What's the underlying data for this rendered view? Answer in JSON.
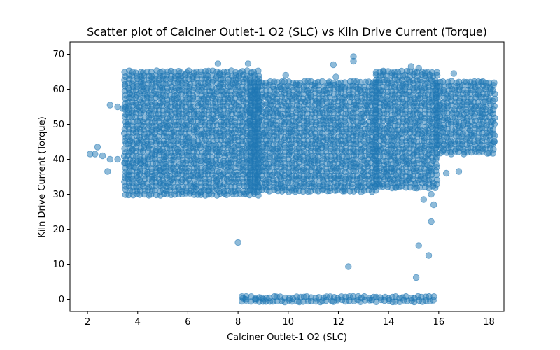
{
  "chart_data": {
    "type": "scatter",
    "title": "Scatter plot of Calciner Outlet-1 O2 (SLC) vs Kiln Drive Current (Torque)",
    "xlabel": "Calciner Outlet-1 O2 (SLC)",
    "ylabel": "Kiln Drive Current (Torque)",
    "xlim": [
      1.3,
      18.6
    ],
    "ylim": [
      -3.5,
      73.5
    ],
    "xticks": [
      2,
      4,
      6,
      8,
      10,
      12,
      14,
      16,
      18
    ],
    "yticks": [
      0,
      10,
      20,
      30,
      40,
      50,
      60,
      70
    ],
    "grid": false,
    "point_color": "#1f77b4",
    "point_alpha": 0.5,
    "clusters": [
      {
        "x": [
          3.5,
          8.8
        ],
        "y": [
          30,
          65
        ]
      },
      {
        "x": [
          8.5,
          13.5
        ],
        "y": [
          31,
          62
        ]
      },
      {
        "x": [
          13.5,
          15.9
        ],
        "y": [
          32,
          65
        ]
      },
      {
        "x": [
          15.9,
          18.2
        ],
        "y": [
          42,
          62
        ]
      },
      {
        "x": [
          8.2,
          15.8
        ],
        "y": [
          -0.5,
          0.5
        ]
      }
    ],
    "points": [
      {
        "x": 2.1,
        "y": 41.5
      },
      {
        "x": 2.3,
        "y": 41.5
      },
      {
        "x": 2.4,
        "y": 43.5
      },
      {
        "x": 2.6,
        "y": 41.0
      },
      {
        "x": 2.9,
        "y": 55.5
      },
      {
        "x": 2.9,
        "y": 40.0
      },
      {
        "x": 2.8,
        "y": 36.5
      },
      {
        "x": 3.2,
        "y": 55.0
      },
      {
        "x": 3.2,
        "y": 40.0
      },
      {
        "x": 3.4,
        "y": 54.5
      },
      {
        "x": 3.5,
        "y": 39.0
      },
      {
        "x": 3.7,
        "y": 38.0
      },
      {
        "x": 4.1,
        "y": 39.0
      },
      {
        "x": 4.9,
        "y": 37.0
      },
      {
        "x": 8.0,
        "y": 16.2
      },
      {
        "x": 8.2,
        "y": 0.3
      },
      {
        "x": 8.3,
        "y": 0.0
      },
      {
        "x": 8.7,
        "y": 0.0
      },
      {
        "x": 9.0,
        "y": 0.0
      },
      {
        "x": 12.4,
        "y": 9.3
      },
      {
        "x": 15.1,
        "y": 6.2
      },
      {
        "x": 15.2,
        "y": 15.3
      },
      {
        "x": 15.6,
        "y": 12.5
      },
      {
        "x": 15.7,
        "y": 22.2
      },
      {
        "x": 15.8,
        "y": 27.0
      },
      {
        "x": 15.7,
        "y": 30.0
      },
      {
        "x": 15.4,
        "y": 28.5
      },
      {
        "x": 7.2,
        "y": 67.3
      },
      {
        "x": 8.4,
        "y": 67.3
      },
      {
        "x": 12.6,
        "y": 69.3
      },
      {
        "x": 12.6,
        "y": 68.0
      },
      {
        "x": 11.8,
        "y": 67.0
      },
      {
        "x": 14.9,
        "y": 66.5
      },
      {
        "x": 15.2,
        "y": 66.0
      },
      {
        "x": 16.6,
        "y": 64.5
      },
      {
        "x": 13.8,
        "y": 65.0
      },
      {
        "x": 9.9,
        "y": 64.0
      },
      {
        "x": 11.9,
        "y": 63.5
      },
      {
        "x": 13.6,
        "y": 62.0
      },
      {
        "x": 17.7,
        "y": 62.0
      },
      {
        "x": 17.4,
        "y": 61.5
      },
      {
        "x": 16.3,
        "y": 36.0
      },
      {
        "x": 16.8,
        "y": 36.5
      },
      {
        "x": 17.0,
        "y": 41.5
      },
      {
        "x": 16.5,
        "y": 41.5
      },
      {
        "x": 18.2,
        "y": 45.0
      },
      {
        "x": 11.4,
        "y": 31.5
      },
      {
        "x": 12.2,
        "y": 31.5
      },
      {
        "x": 12.8,
        "y": 32.5
      },
      {
        "x": 10.3,
        "y": 31.5
      },
      {
        "x": 6.8,
        "y": 31.0
      },
      {
        "x": 6.5,
        "y": 30.5
      },
      {
        "x": 9.7,
        "y": 32.5
      },
      {
        "x": 14.6,
        "y": 40.5
      },
      {
        "x": 13.9,
        "y": 36.0
      },
      {
        "x": 14.1,
        "y": 37.5
      },
      {
        "x": 14.3,
        "y": 32.0
      }
    ]
  }
}
